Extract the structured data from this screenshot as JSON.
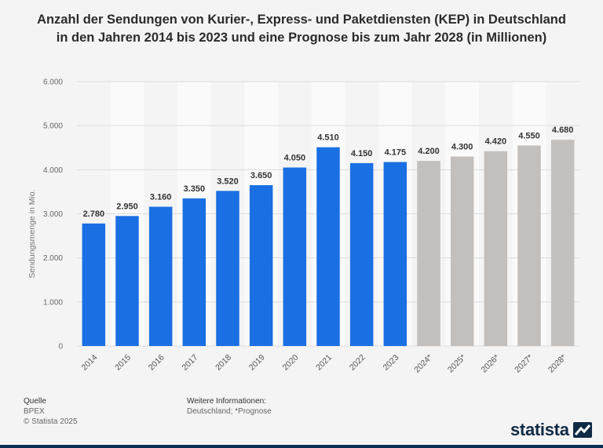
{
  "chart_data": {
    "type": "bar",
    "title": "Anzahl der Sendungen von Kurier-, Express- und Paketdiensten (KEP) in Deutschland in den Jahren 2014 bis 2023 und eine Prognose bis zum Jahr 2028 (in Millionen)",
    "ylabel": "Sendungsmenge in Mio.",
    "xlabel": "",
    "ylim": [
      0,
      6000
    ],
    "yticks": [
      {
        "value": 0,
        "label": "0"
      },
      {
        "value": 1000,
        "label": "1.000"
      },
      {
        "value": 2000,
        "label": "2.000"
      },
      {
        "value": 3000,
        "label": "3.000"
      },
      {
        "value": 4000,
        "label": "4.000"
      },
      {
        "value": 5000,
        "label": "5.000"
      },
      {
        "value": 6000,
        "label": "6.000"
      }
    ],
    "categories": [
      "2014",
      "2015",
      "2016",
      "2017",
      "2018",
      "2019",
      "2020",
      "2021",
      "2022",
      "2023",
      "2024*",
      "2025*",
      "2026*",
      "2027*",
      "2028*"
    ],
    "values": [
      2780,
      2950,
      3160,
      3350,
      3520,
      3650,
      4050,
      4510,
      4150,
      4175,
      4200,
      4300,
      4420,
      4550,
      4680
    ],
    "value_labels": [
      "2.780",
      "2.950",
      "3.160",
      "3.350",
      "3.520",
      "3.650",
      "4.050",
      "4.510",
      "4.150",
      "4.175",
      "4.200",
      "4.300",
      "4.420",
      "4.550",
      "4.680"
    ],
    "forecast": [
      false,
      false,
      false,
      false,
      false,
      false,
      false,
      false,
      false,
      false,
      true,
      true,
      true,
      true,
      true
    ],
    "colors": {
      "actual": "#1a6fe3",
      "forecast": "#c3bfbd"
    },
    "grid": true
  },
  "footer": {
    "source_heading": "Quelle",
    "source": "BPEX",
    "copyright": "© Statista 2025",
    "info_heading": "Weitere Informationen:",
    "info": "Deutschland; *Prognose"
  },
  "brand": {
    "name": "statista",
    "icon": "statista-logo-icon"
  }
}
